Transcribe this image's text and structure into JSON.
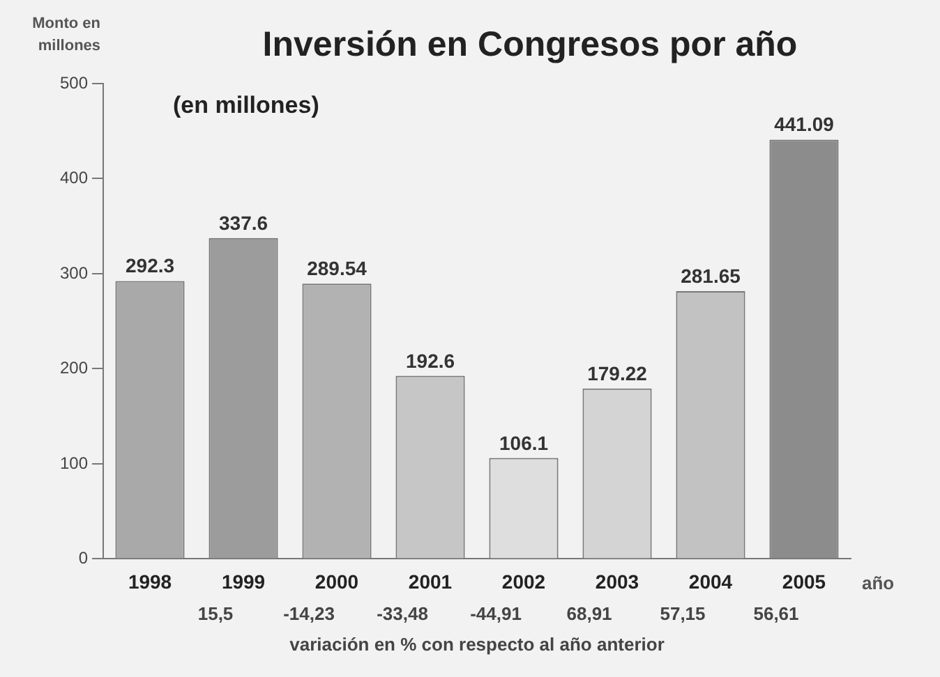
{
  "chart_data": {
    "type": "bar",
    "title": "Inversión en Congresos por año",
    "subtitle": "(en millones)",
    "ylabel": "Monto en millones",
    "xlabel": "año",
    "categories": [
      "1998",
      "1999",
      "2000",
      "2001",
      "2002",
      "2003",
      "2004",
      "2005"
    ],
    "values": [
      292.3,
      337.6,
      289.54,
      192.6,
      106.1,
      179.22,
      281.65,
      441.09
    ],
    "colors": [
      "#a9a9a9",
      "#9c9c9c",
      "#b2b2b2",
      "#c6c6c6",
      "#dedede",
      "#d4d4d4",
      "#c2c2c2",
      "#8c8c8c"
    ],
    "ylim": [
      0,
      500
    ],
    "yticks": [
      0,
      100,
      200,
      300,
      400,
      500
    ],
    "grid": false,
    "legend": false,
    "data_labels": true,
    "annotations": [
      "15,5",
      "-14,23",
      "-33,48",
      "-44,91",
      "68,91",
      "57,15",
      "56,61",
      "variación en % con respecto al año anterior"
    ]
  }
}
